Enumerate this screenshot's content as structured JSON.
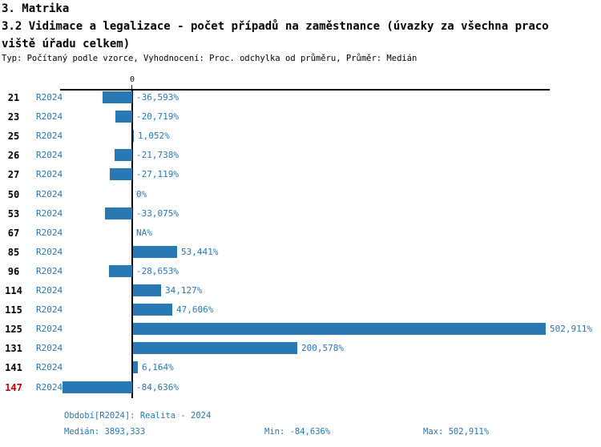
{
  "colors": {
    "accent_blue": "#2278b5",
    "bar_blue": "#2878b4",
    "highlight_red": "#cc0000",
    "text_black": "#000000"
  },
  "header": {
    "section_title": "3. Matrika",
    "title_line1": "3.2 Vidimace a legalizace - počet případů na zaměstnance (úvazky za všechna praco",
    "title_line2": "viště úřadu celkem)",
    "meta": "Typ: Počítaný podle vzorce, Vyhodnocení: Proc. odchylka od průměru, Průměr: Medián"
  },
  "chart_data": {
    "type": "bar",
    "orientation": "horizontal",
    "title": "3.2 Vidimace a legalizace - počet případů na zaměstnance (úvazky za všechna pracoviště úřadu celkem)",
    "value_unit": "%",
    "zero_tick_label": "0",
    "xlim": [
      -84.636,
      502.911
    ],
    "legend": "values are Proc. odchylka od průměru (Medián)",
    "rows": [
      {
        "id": "21",
        "period": "R2024",
        "value": -36.593,
        "value_label": "-36,593%",
        "highlight": false
      },
      {
        "id": "23",
        "period": "R2024",
        "value": -20.719,
        "value_label": "-20,719%",
        "highlight": false
      },
      {
        "id": "25",
        "period": "R2024",
        "value": 1.052,
        "value_label": "1,052%",
        "highlight": false
      },
      {
        "id": "26",
        "period": "R2024",
        "value": -21.738,
        "value_label": "-21,738%",
        "highlight": false
      },
      {
        "id": "27",
        "period": "R2024",
        "value": -27.119,
        "value_label": "-27,119%",
        "highlight": false
      },
      {
        "id": "50",
        "period": "R2024",
        "value": 0,
        "value_label": "0%",
        "highlight": false
      },
      {
        "id": "53",
        "period": "R2024",
        "value": -33.075,
        "value_label": "-33,075%",
        "highlight": false
      },
      {
        "id": "67",
        "period": "R2024",
        "value": null,
        "value_label": "NA%",
        "highlight": false
      },
      {
        "id": "85",
        "period": "R2024",
        "value": 53.441,
        "value_label": "53,441%",
        "highlight": false
      },
      {
        "id": "96",
        "period": "R2024",
        "value": -28.653,
        "value_label": "-28,653%",
        "highlight": false
      },
      {
        "id": "114",
        "period": "R2024",
        "value": 34.127,
        "value_label": "34,127%",
        "highlight": false
      },
      {
        "id": "115",
        "period": "R2024",
        "value": 47.606,
        "value_label": "47,606%",
        "highlight": false
      },
      {
        "id": "125",
        "period": "R2024",
        "value": 502.911,
        "value_label": "502,911%",
        "highlight": false
      },
      {
        "id": "131",
        "period": "R2024",
        "value": 200.578,
        "value_label": "200,578%",
        "highlight": false
      },
      {
        "id": "141",
        "period": "R2024",
        "value": 6.164,
        "value_label": "6,164%",
        "highlight": false
      },
      {
        "id": "147",
        "period": "R2024",
        "value": -84.636,
        "value_label": "-84,636%",
        "highlight": true
      }
    ]
  },
  "footer": {
    "period": "Období[R2024]: Realita - 2024",
    "median": "Medián: 3893,333",
    "min": "Min: -84,636%",
    "max": "Max: 502,911%"
  }
}
